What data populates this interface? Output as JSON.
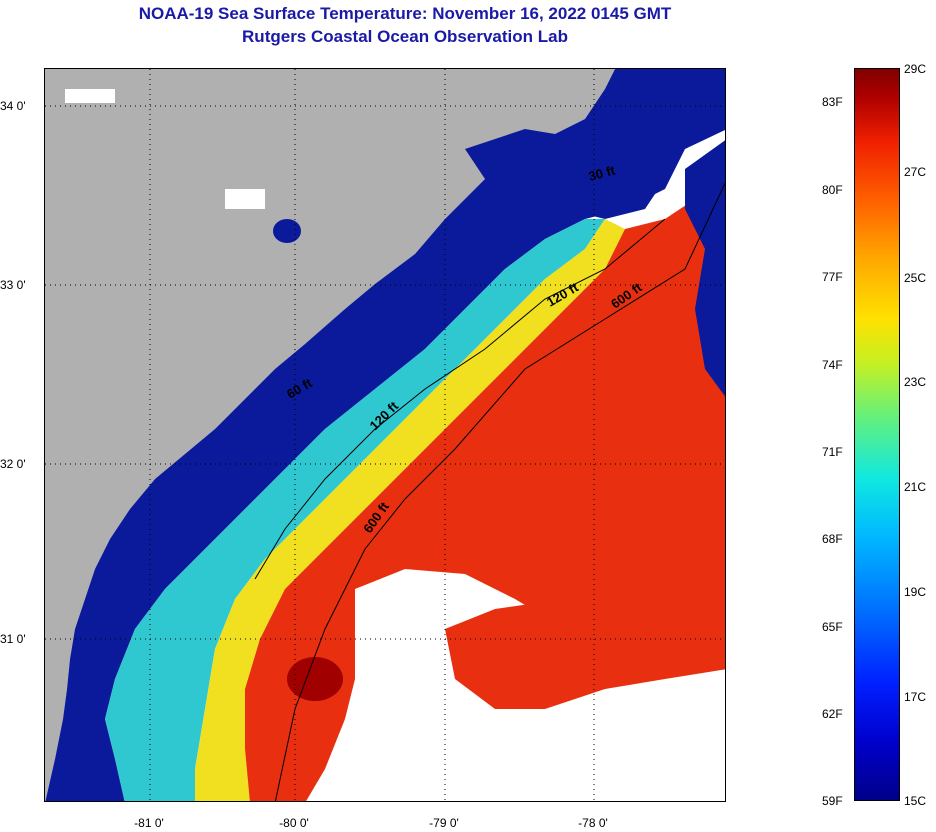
{
  "header": {
    "title": "NOAA-19 Sea Surface Temperature:  November 16, 2022 0145 GMT",
    "subtitle": "Rutgers Coastal Ocean Observation Lab"
  },
  "map": {
    "latitude_labels": [
      "34 0'",
      "33 0'",
      "32 0'",
      "31 0'"
    ],
    "longitude_labels": [
      "-81 0'",
      "-80 0'",
      "-79 0'",
      "-78 0'"
    ],
    "contour_labels": [
      "30 ft",
      "60 ft",
      "120 ft",
      "120 ft",
      "600 ft",
      "600 ft"
    ],
    "colors": {
      "land": "#b0b0b0",
      "cloud_or_missing": "#ffffff",
      "cold_nearshore": "#0a1a9a",
      "warm_offshore": "#e83010",
      "hot_core": "#a00000"
    }
  },
  "colorbar": {
    "fahrenheit_labels": [
      "83F",
      "80F",
      "77F",
      "74F",
      "71F",
      "68F",
      "65F",
      "62F",
      "59F"
    ],
    "celsius_labels": [
      "29C",
      "27C",
      "25C",
      "23C",
      "21C",
      "19C",
      "17C",
      "15C"
    ],
    "scale_min_c": 15,
    "scale_max_c": 29,
    "scale_min_f": 59,
    "scale_max_f": 84.2
  }
}
